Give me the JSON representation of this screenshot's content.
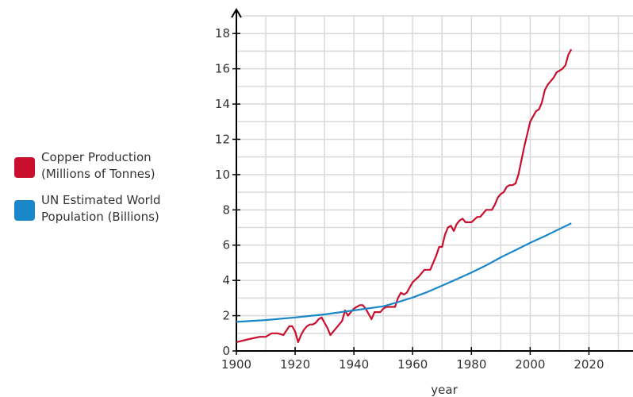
{
  "chart_data": {
    "type": "line",
    "xlabel": "year",
    "ylabel": "",
    "xlim": [
      1900,
      2035
    ],
    "ylim": [
      0,
      19
    ],
    "x_ticks": [
      1900,
      1920,
      1940,
      1960,
      1980,
      2000,
      2020
    ],
    "y_ticks": [
      0,
      2,
      4,
      6,
      8,
      10,
      12,
      14,
      16,
      18
    ],
    "grid": true,
    "legend_position": "left",
    "series": [
      {
        "name_lines": [
          "Copper Production",
          "(Millions of Tonnes)"
        ],
        "color": "#c8102e",
        "x": [
          1900,
          1905,
          1908,
          1910,
          1912,
          1914,
          1916,
          1918,
          1919,
          1920,
          1921,
          1922,
          1923,
          1924,
          1925,
          1926,
          1927,
          1928,
          1929,
          1930,
          1931,
          1932,
          1933,
          1934,
          1935,
          1936,
          1937,
          1938,
          1939,
          1940,
          1941,
          1942,
          1943,
          1944,
          1945,
          1946,
          1947,
          1948,
          1949,
          1950,
          1951,
          1952,
          1953,
          1954,
          1955,
          1956,
          1957,
          1958,
          1959,
          1960,
          1962,
          1964,
          1965,
          1966,
          1967,
          1968,
          1969,
          1970,
          1971,
          1972,
          1973,
          1974,
          1975,
          1976,
          1977,
          1978,
          1980,
          1982,
          1983,
          1984,
          1985,
          1986,
          1987,
          1988,
          1989,
          1990,
          1991,
          1992,
          1993,
          1994,
          1995,
          1996,
          1998,
          2000,
          2002,
          2003,
          2004,
          2005,
          2006,
          2007,
          2008,
          2009,
          2010,
          2011,
          2012,
          2013,
          2014
        ],
        "y": [
          0.5,
          0.7,
          0.8,
          0.8,
          1.0,
          1.0,
          0.9,
          1.4,
          1.4,
          1.1,
          0.5,
          0.9,
          1.2,
          1.4,
          1.5,
          1.5,
          1.6,
          1.8,
          1.9,
          1.6,
          1.3,
          0.9,
          1.1,
          1.3,
          1.5,
          1.7,
          2.3,
          2.0,
          2.2,
          2.4,
          2.5,
          2.6,
          2.6,
          2.4,
          2.1,
          1.8,
          2.2,
          2.2,
          2.2,
          2.4,
          2.5,
          2.5,
          2.5,
          2.5,
          3.0,
          3.3,
          3.2,
          3.3,
          3.6,
          3.9,
          4.2,
          4.6,
          4.6,
          4.6,
          5.0,
          5.4,
          5.9,
          5.9,
          6.6,
          7.0,
          7.1,
          6.8,
          7.2,
          7.4,
          7.5,
          7.3,
          7.3,
          7.6,
          7.6,
          7.8,
          8.0,
          8.0,
          8.0,
          8.3,
          8.7,
          8.9,
          9.0,
          9.3,
          9.4,
          9.4,
          9.5,
          10.0,
          11.6,
          13.0,
          13.6,
          13.7,
          14.1,
          14.8,
          15.1,
          15.3,
          15.5,
          15.8,
          15.9,
          16.0,
          16.2,
          16.8,
          17.1
        ]
      },
      {
        "name_lines": [
          "UN Estimated World",
          "Population (Billions)"
        ],
        "color": "#1a87c8",
        "x": [
          1900,
          1910,
          1920,
          1930,
          1940,
          1950,
          1955,
          1960,
          1965,
          1970,
          1975,
          1980,
          1985,
          1990,
          1995,
          2000,
          2005,
          2010,
          2014
        ],
        "y": [
          1.65,
          1.75,
          1.9,
          2.07,
          2.3,
          2.53,
          2.77,
          3.03,
          3.34,
          3.7,
          4.07,
          4.45,
          4.85,
          5.31,
          5.72,
          6.13,
          6.51,
          6.92,
          7.24
        ]
      }
    ]
  }
}
